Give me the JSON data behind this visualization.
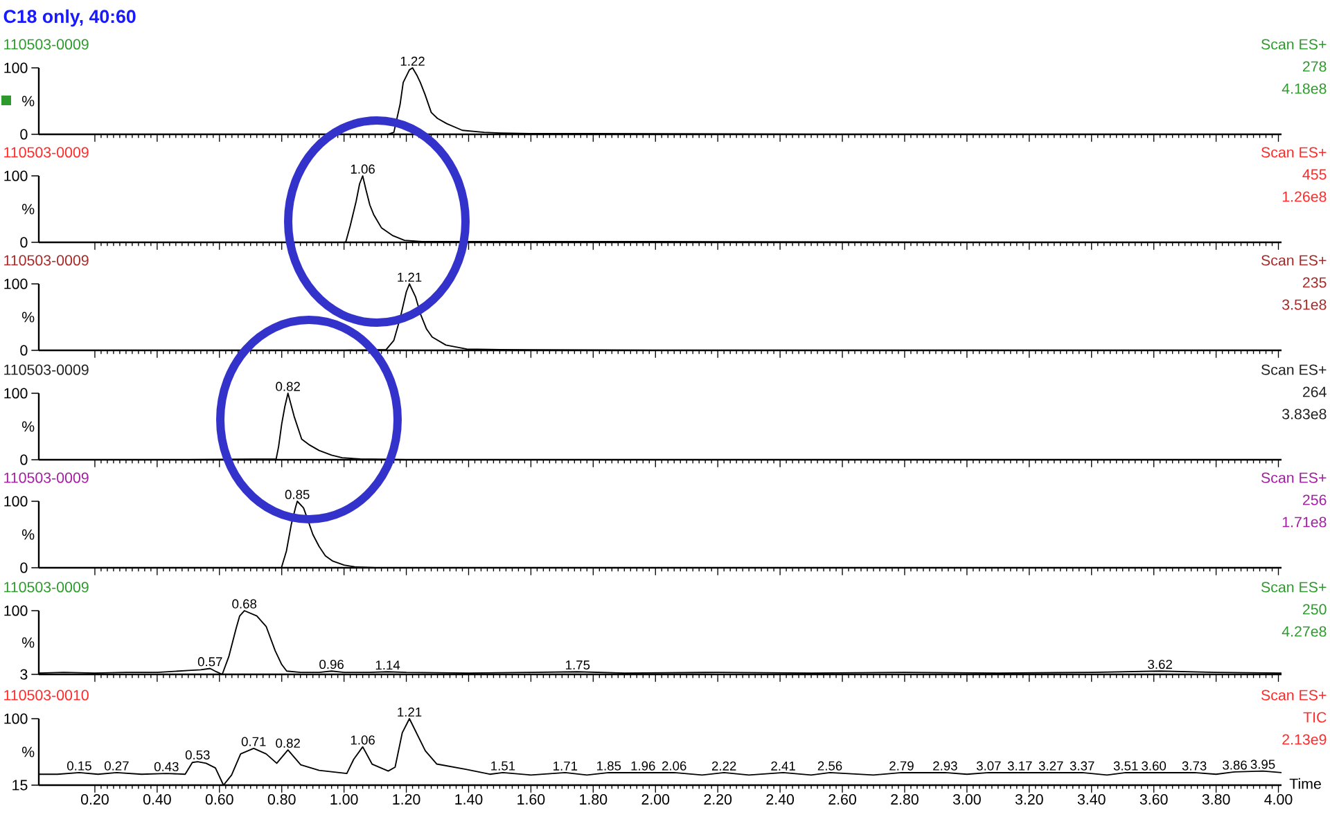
{
  "chart_data": [
    {
      "type": "line",
      "title": "C18 only, 40:60",
      "subtitle": "110503-0009",
      "ylabel": "%",
      "xlim": [
        0.02,
        4.01
      ],
      "ylim": [
        0,
        100
      ],
      "yticks": [
        0,
        100
      ],
      "tick_labels": "y",
      "xticks": [
        {
          "value": 0.2,
          "label": null
        },
        {
          "value": 0.4,
          "label": null
        },
        {
          "value": 0.6,
          "label": null
        },
        {
          "value": 0.8,
          "label": null
        },
        {
          "value": 1.0,
          "label": null
        },
        {
          "value": 1.2,
          "label": null
        },
        {
          "value": 1.4,
          "label": null
        },
        {
          "value": 1.6,
          "label": null
        },
        {
          "value": 1.8,
          "label": null
        },
        {
          "value": 2.0,
          "label": null
        },
        {
          "value": 2.2,
          "label": null
        },
        {
          "value": 2.4,
          "label": null
        },
        {
          "value": 2.6,
          "label": null
        },
        {
          "value": 2.8,
          "label": null
        },
        {
          "value": 3.0,
          "label": null
        },
        {
          "value": 3.2,
          "label": null
        },
        {
          "value": 3.4,
          "label": null
        },
        {
          "value": 3.6,
          "label": null
        },
        {
          "value": 3.8,
          "label": null
        },
        {
          "value": 4.0,
          "label": null
        }
      ],
      "series": [
        {
          "color": "#000000",
          "x": [
            0.02,
            0.5,
            1.0,
            1.14,
            1.16,
            1.18,
            1.19,
            1.21,
            1.22,
            1.235,
            1.245,
            1.26,
            1.28,
            1.3,
            1.33,
            1.38,
            1.45,
            1.5,
            1.6,
            1.8,
            2.5,
            3.0,
            4.01
          ],
          "values": [
            0,
            0,
            0,
            0,
            3,
            45,
            78,
            97,
            100,
            88,
            78,
            60,
            33,
            24,
            16,
            6,
            3,
            2,
            1,
            1,
            0,
            0,
            0
          ]
        }
      ],
      "annotations": [
        "Scan ES+",
        "278",
        "4.18e8",
        {
          "text": "1.22",
          "x": 1.22,
          "y": 100
        }
      ]
    },
    {
      "type": "line",
      "subtitle": "110503-0009",
      "ylabel": "%",
      "xlim": [
        0.02,
        4.01
      ],
      "ylim": [
        0,
        100
      ],
      "yticks": [
        0,
        100
      ],
      "tick_labels": "y",
      "xticks": [
        {
          "value": 0.2,
          "label": null
        },
        {
          "value": 0.4,
          "label": null
        },
        {
          "value": 0.6,
          "label": null
        },
        {
          "value": 0.8,
          "label": null
        },
        {
          "value": 1.0,
          "label": null
        },
        {
          "value": 1.2,
          "label": null
        },
        {
          "value": 1.4,
          "label": null
        },
        {
          "value": 1.6,
          "label": null
        },
        {
          "value": 1.8,
          "label": null
        },
        {
          "value": 2.0,
          "label": null
        },
        {
          "value": 2.2,
          "label": null
        },
        {
          "value": 2.4,
          "label": null
        },
        {
          "value": 2.6,
          "label": null
        },
        {
          "value": 2.8,
          "label": null
        },
        {
          "value": 3.0,
          "label": null
        },
        {
          "value": 3.2,
          "label": null
        },
        {
          "value": 3.4,
          "label": null
        },
        {
          "value": 3.6,
          "label": null
        },
        {
          "value": 3.8,
          "label": null
        },
        {
          "value": 4.0,
          "label": null
        }
      ],
      "series": [
        {
          "color": "#000000",
          "x": [
            0.02,
            0.5,
            1.0,
            1.006,
            1.02,
            1.039,
            1.05,
            1.06,
            1.07,
            1.083,
            1.095,
            1.11,
            1.12,
            1.157,
            1.194,
            1.25,
            1.4,
            2.0,
            3.0,
            4.01
          ],
          "values": [
            0,
            0,
            0,
            1,
            25,
            62,
            88,
            100,
            80,
            56,
            42,
            30,
            22,
            10,
            3,
            1,
            1,
            1,
            0,
            0
          ]
        }
      ],
      "annotations": [
        "Scan ES+",
        "455",
        "1.26e8",
        {
          "text": "1.06",
          "x": 1.06,
          "y": 100
        }
      ]
    },
    {
      "type": "line",
      "subtitle": "110503-0009",
      "ylabel": "%",
      "xlim": [
        0.02,
        4.01
      ],
      "ylim": [
        0,
        100
      ],
      "yticks": [
        0,
        100
      ],
      "tick_labels": "y",
      "xticks": [
        {
          "value": 0.2,
          "label": null
        },
        {
          "value": 0.4,
          "label": null
        },
        {
          "value": 0.6,
          "label": null
        },
        {
          "value": 0.8,
          "label": null
        },
        {
          "value": 1.0,
          "label": null
        },
        {
          "value": 1.2,
          "label": null
        },
        {
          "value": 1.4,
          "label": null
        },
        {
          "value": 1.6,
          "label": null
        },
        {
          "value": 1.8,
          "label": null
        },
        {
          "value": 2.0,
          "label": null
        },
        {
          "value": 2.2,
          "label": null
        },
        {
          "value": 2.4,
          "label": null
        },
        {
          "value": 2.6,
          "label": null
        },
        {
          "value": 2.8,
          "label": null
        },
        {
          "value": 3.0,
          "label": null
        },
        {
          "value": 3.2,
          "label": null
        },
        {
          "value": 3.4,
          "label": null
        },
        {
          "value": 3.6,
          "label": null
        },
        {
          "value": 3.8,
          "label": null
        },
        {
          "value": 4.0,
          "label": null
        }
      ],
      "series": [
        {
          "color": "#000000",
          "x": [
            0.02,
            1.0,
            1.135,
            1.16,
            1.18,
            1.2,
            1.21,
            1.23,
            1.246,
            1.265,
            1.283,
            1.327,
            1.394,
            1.5,
            2.0,
            4.01
          ],
          "values": [
            0,
            0,
            1,
            15,
            48,
            88,
            100,
            80,
            54,
            32,
            20,
            8,
            2,
            1,
            0,
            0
          ]
        }
      ],
      "annotations": [
        "Scan ES+",
        "235",
        "3.51e8",
        {
          "text": "1.21",
          "x": 1.21,
          "y": 100
        }
      ]
    },
    {
      "type": "line",
      "subtitle": "110503-0009",
      "ylabel": "%",
      "xlim": [
        0.02,
        4.01
      ],
      "ylim": [
        0,
        100
      ],
      "yticks": [
        0,
        100
      ],
      "tick_labels": "y",
      "xticks": [
        {
          "value": 0.2,
          "label": null
        },
        {
          "value": 0.4,
          "label": null
        },
        {
          "value": 0.6,
          "label": null
        },
        {
          "value": 0.8,
          "label": null
        },
        {
          "value": 1.0,
          "label": null
        },
        {
          "value": 1.2,
          "label": null
        },
        {
          "value": 1.4,
          "label": null
        },
        {
          "value": 1.6,
          "label": null
        },
        {
          "value": 1.8,
          "label": null
        },
        {
          "value": 2.0,
          "label": null
        },
        {
          "value": 2.2,
          "label": null
        },
        {
          "value": 2.4,
          "label": null
        },
        {
          "value": 2.6,
          "label": null
        },
        {
          "value": 2.8,
          "label": null
        },
        {
          "value": 3.0,
          "label": null
        },
        {
          "value": 3.2,
          "label": null
        },
        {
          "value": 3.4,
          "label": null
        },
        {
          "value": 3.6,
          "label": null
        },
        {
          "value": 3.8,
          "label": null
        },
        {
          "value": 4.0,
          "label": null
        }
      ],
      "series": [
        {
          "color": "#000000",
          "x": [
            0.02,
            0.5,
            0.782,
            0.79,
            0.8,
            0.81,
            0.82,
            0.84,
            0.864,
            0.89,
            0.92,
            0.96,
            0.994,
            1.053,
            1.2,
            2.0,
            4.01
          ],
          "values": [
            0,
            0,
            1,
            20,
            54,
            80,
            100,
            65,
            31,
            22,
            14,
            7,
            3,
            1,
            0,
            0,
            0
          ]
        }
      ],
      "annotations": [
        "Scan ES+",
        "264",
        "3.83e8",
        {
          "text": "0.82",
          "x": 0.82,
          "y": 100
        }
      ]
    },
    {
      "type": "line",
      "subtitle": "110503-0009",
      "ylabel": "%",
      "xlim": [
        0.02,
        4.01
      ],
      "ylim": [
        0,
        100
      ],
      "yticks": [
        0,
        100
      ],
      "tick_labels": "y",
      "xticks": [
        {
          "value": 0.2,
          "label": null
        },
        {
          "value": 0.4,
          "label": null
        },
        {
          "value": 0.6,
          "label": null
        },
        {
          "value": 0.8,
          "label": null
        },
        {
          "value": 1.0,
          "label": null
        },
        {
          "value": 1.2,
          "label": null
        },
        {
          "value": 1.4,
          "label": null
        },
        {
          "value": 1.6,
          "label": null
        },
        {
          "value": 1.8,
          "label": null
        },
        {
          "value": 2.0,
          "label": null
        },
        {
          "value": 2.2,
          "label": null
        },
        {
          "value": 2.4,
          "label": null
        },
        {
          "value": 2.6,
          "label": null
        },
        {
          "value": 2.8,
          "label": null
        },
        {
          "value": 3.0,
          "label": null
        },
        {
          "value": 3.2,
          "label": null
        },
        {
          "value": 3.4,
          "label": null
        },
        {
          "value": 3.6,
          "label": null
        },
        {
          "value": 3.8,
          "label": null
        },
        {
          "value": 4.0,
          "label": null
        }
      ],
      "series": [
        {
          "color": "#000000",
          "x": [
            0.02,
            0.5,
            0.799,
            0.815,
            0.831,
            0.845,
            0.85,
            0.87,
            0.883,
            0.9,
            0.92,
            0.94,
            0.964,
            1.0,
            1.039,
            1.1,
            4.01
          ],
          "values": [
            0,
            0,
            0,
            25,
            66,
            92,
            100,
            90,
            73,
            50,
            32,
            18,
            10,
            4,
            1,
            0,
            0
          ]
        }
      ],
      "annotations": [
        "Scan ES+",
        "256",
        "1.71e8",
        {
          "text": "0.85",
          "x": 0.85,
          "y": 100
        }
      ]
    },
    {
      "type": "line",
      "subtitle": "110503-0009",
      "ylabel": "%",
      "xlim": [
        0.02,
        4.01
      ],
      "ylim": [
        3,
        100
      ],
      "yticks": [
        3,
        100
      ],
      "tick_labels": "y",
      "xticks": [
        {
          "value": 0.2,
          "label": null
        },
        {
          "value": 0.4,
          "label": null
        },
        {
          "value": 0.6,
          "label": null
        },
        {
          "value": 0.8,
          "label": null
        },
        {
          "value": 1.0,
          "label": null
        },
        {
          "value": 1.2,
          "label": null
        },
        {
          "value": 1.4,
          "label": null
        },
        {
          "value": 1.6,
          "label": null
        },
        {
          "value": 1.8,
          "label": null
        },
        {
          "value": 2.0,
          "label": null
        },
        {
          "value": 2.2,
          "label": null
        },
        {
          "value": 2.4,
          "label": null
        },
        {
          "value": 2.6,
          "label": null
        },
        {
          "value": 2.8,
          "label": null
        },
        {
          "value": 3.0,
          "label": null
        },
        {
          "value": 3.2,
          "label": null
        },
        {
          "value": 3.4,
          "label": null
        },
        {
          "value": 3.6,
          "label": null
        },
        {
          "value": 3.8,
          "label": null
        },
        {
          "value": 4.0,
          "label": null
        }
      ],
      "series": [
        {
          "color": "#000000",
          "x": [
            0.02,
            0.1,
            0.2,
            0.3,
            0.4,
            0.5,
            0.54,
            0.57,
            0.59,
            0.609,
            0.63,
            0.653,
            0.665,
            0.68,
            0.7,
            0.72,
            0.75,
            0.779,
            0.8,
            0.816,
            0.861,
            0.92,
            0.96,
            1.0,
            1.08,
            1.14,
            1.2,
            1.4,
            1.6,
            1.75,
            1.9,
            2.2,
            2.5,
            2.8,
            3.1,
            3.4,
            3.62,
            3.8,
            4.01
          ],
          "values": [
            5,
            6,
            5,
            6,
            6,
            9,
            10,
            12,
            7,
            3,
            30,
            72,
            92,
            100,
            96,
            92,
            76,
            39,
            18,
            8,
            6,
            6,
            8,
            6,
            6,
            7,
            6,
            5,
            6,
            7,
            5,
            6,
            5,
            6,
            5,
            6,
            8,
            6,
            5
          ]
        }
      ],
      "annotations": [
        "Scan ES+",
        "250",
        "4.27e8",
        {
          "text": "0.57",
          "x": 0.57,
          "y": 12
        },
        {
          "text": "0.68",
          "x": 0.68,
          "y": 100
        },
        {
          "text": "0.96",
          "x": 0.96,
          "y": 8
        },
        {
          "text": "1.14",
          "x": 1.14,
          "y": 7
        },
        {
          "text": "1.75",
          "x": 1.75,
          "y": 7
        },
        {
          "text": "3.62",
          "x": 3.62,
          "y": 8
        }
      ]
    },
    {
      "type": "line",
      "subtitle": "110503-0010",
      "xlabel": "Time",
      "ylabel": "%",
      "xlim": [
        0.02,
        4.01
      ],
      "ylim": [
        15,
        100
      ],
      "yticks": [
        15,
        100
      ],
      "xticks": [
        {
          "value": 0.2,
          "label": "0.20"
        },
        {
          "value": 0.4,
          "label": "0.40"
        },
        {
          "value": 0.6,
          "label": "0.60"
        },
        {
          "value": 0.8,
          "label": "0.80"
        },
        {
          "value": 1.0,
          "label": "1.00"
        },
        {
          "value": 1.2,
          "label": "1.20"
        },
        {
          "value": 1.4,
          "label": "1.40"
        },
        {
          "value": 1.6,
          "label": "1.60"
        },
        {
          "value": 1.8,
          "label": "1.80"
        },
        {
          "value": 2.0,
          "label": "2.00"
        },
        {
          "value": 2.2,
          "label": "2.20"
        },
        {
          "value": 2.4,
          "label": "2.40"
        },
        {
          "value": 2.6,
          "label": "2.60"
        },
        {
          "value": 2.8,
          "label": "2.80"
        },
        {
          "value": 3.0,
          "label": "3.00"
        },
        {
          "value": 3.2,
          "label": "3.20"
        },
        {
          "value": 3.4,
          "label": "3.40"
        },
        {
          "value": 3.6,
          "label": "3.60"
        },
        {
          "value": 3.8,
          "label": "3.80"
        },
        {
          "value": 4.0,
          "label": "4.00"
        }
      ],
      "series": [
        {
          "color": "#000000",
          "x": [
            0.02,
            0.08,
            0.15,
            0.21,
            0.27,
            0.35,
            0.43,
            0.49,
            0.513,
            0.53,
            0.557,
            0.587,
            0.613,
            0.639,
            0.668,
            0.71,
            0.75,
            0.784,
            0.82,
            0.861,
            0.92,
            1.009,
            1.031,
            1.06,
            1.09,
            1.142,
            1.164,
            1.187,
            1.21,
            1.261,
            1.298,
            1.394,
            1.468,
            1.51,
            1.6,
            1.71,
            1.78,
            1.85,
            1.96,
            2.06,
            2.15,
            2.22,
            2.3,
            2.41,
            2.5,
            2.56,
            2.7,
            2.79,
            2.93,
            3.0,
            3.07,
            3.17,
            3.27,
            3.37,
            3.45,
            3.51,
            3.6,
            3.73,
            3.8,
            3.86,
            3.95,
            4.01
          ],
          "values": [
            29,
            29,
            31,
            29,
            31,
            29,
            30,
            29,
            44,
            45,
            43,
            37,
            15,
            28,
            55,
            62,
            55,
            43,
            60,
            41,
            34,
            30,
            48,
            64,
            42,
            33,
            38,
            82,
            100,
            59,
            42,
            35,
            29,
            31,
            28,
            31,
            28,
            31,
            31,
            31,
            28,
            31,
            28,
            31,
            28,
            31,
            28,
            31,
            31,
            29,
            31,
            31,
            31,
            31,
            28,
            31,
            31,
            31,
            29,
            32,
            33,
            31
          ]
        }
      ],
      "annotations": [
        "Scan ES+",
        "TIC",
        "2.13e9",
        {
          "text": "0.15",
          "x": 0.15,
          "y": 31
        },
        {
          "text": "0.27",
          "x": 0.27,
          "y": 31
        },
        {
          "text": "0.43",
          "x": 0.43,
          "y": 30
        },
        {
          "text": "0.53",
          "x": 0.53,
          "y": 45
        },
        {
          "text": "0.71",
          "x": 0.71,
          "y": 62
        },
        {
          "text": "0.82",
          "x": 0.82,
          "y": 60
        },
        {
          "text": "1.06",
          "x": 1.06,
          "y": 64
        },
        {
          "text": "1.21",
          "x": 1.21,
          "y": 100
        },
        {
          "text": "1.51",
          "x": 1.51,
          "y": 31
        },
        {
          "text": "1.71",
          "x": 1.71,
          "y": 31
        },
        {
          "text": "1.85",
          "x": 1.85,
          "y": 31
        },
        {
          "text": "1.96",
          "x": 1.96,
          "y": 31
        },
        {
          "text": "2.06",
          "x": 2.06,
          "y": 31
        },
        {
          "text": "2.22",
          "x": 2.22,
          "y": 31
        },
        {
          "text": "2.41",
          "x": 2.41,
          "y": 31
        },
        {
          "text": "2.56",
          "x": 2.56,
          "y": 31
        },
        {
          "text": "2.79",
          "x": 2.79,
          "y": 31
        },
        {
          "text": "2.93",
          "x": 2.93,
          "y": 31
        },
        {
          "text": "3.07",
          "x": 3.07,
          "y": 31
        },
        {
          "text": "3.17",
          "x": 3.17,
          "y": 31
        },
        {
          "text": "3.27",
          "x": 3.27,
          "y": 31
        },
        {
          "text": "3.37",
          "x": 3.37,
          "y": 31
        },
        {
          "text": "3.51",
          "x": 3.51,
          "y": 31
        },
        {
          "text": "3.60",
          "x": 3.6,
          "y": 31
        },
        {
          "text": "3.73",
          "x": 3.73,
          "y": 31
        },
        {
          "text": "3.86",
          "x": 3.86,
          "y": 32
        },
        {
          "text": "3.95",
          "x": 3.95,
          "y": 33
        }
      ]
    }
  ]
}
